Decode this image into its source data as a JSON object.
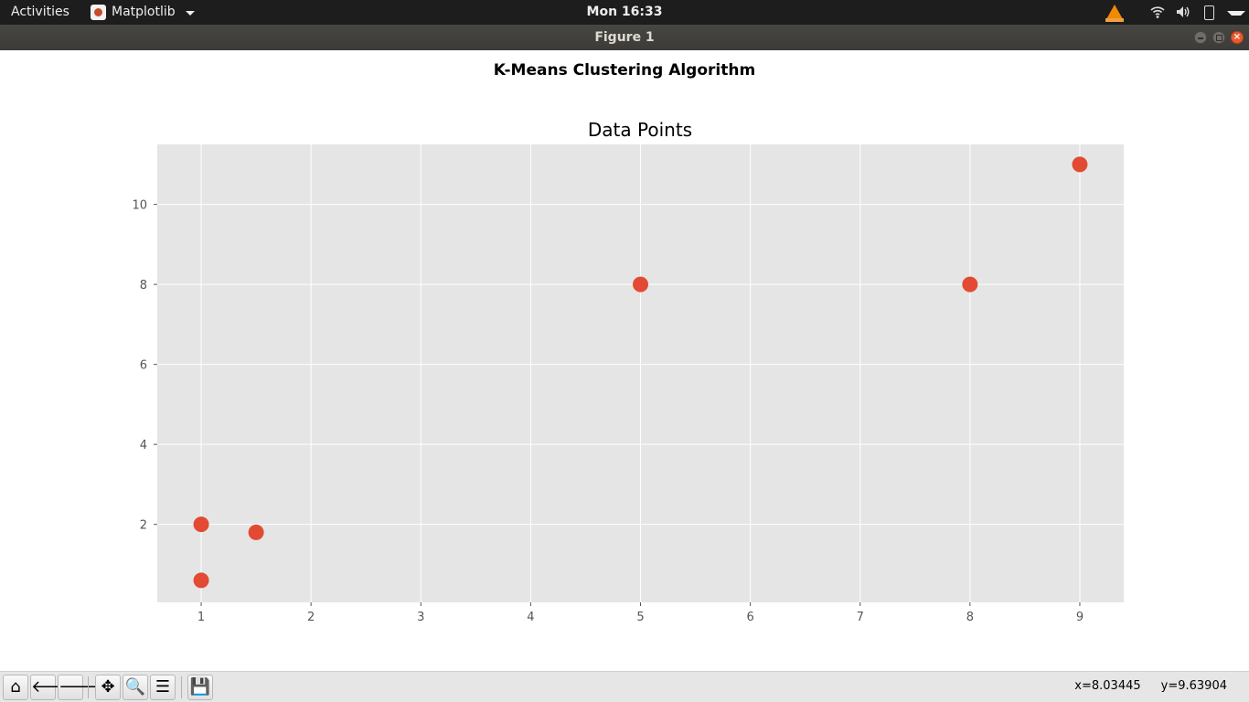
{
  "topbar": {
    "activities_label": "Activities",
    "app_name": "Matplotlib",
    "clock": "Mon 16:33"
  },
  "window": {
    "title": "Figure 1",
    "close_glyph": "×"
  },
  "figure": {
    "suptitle": "K-Means Clustering Algorithm"
  },
  "chart_data": {
    "type": "scatter",
    "title": "Data Points",
    "xlabel": "",
    "ylabel": "",
    "x": [
      1,
      1.5,
      5,
      8,
      1,
      9
    ],
    "y": [
      2,
      1.8,
      8,
      8,
      0.6,
      11
    ],
    "xlim": [
      0.6,
      9.4
    ],
    "ylim": [
      0.05,
      11.5
    ],
    "xticks": [
      1,
      2,
      3,
      4,
      5,
      6,
      7,
      8,
      9
    ],
    "yticks": [
      2,
      4,
      6,
      8,
      10
    ],
    "grid": true,
    "style": "ggplot",
    "colors": {
      "marker": "#e24a33",
      "axes_background": "#e5e5e5",
      "grid": "#ffffff",
      "tick_label": "#555555"
    }
  },
  "toolbar": {
    "buttons": [
      {
        "name": "home",
        "icon": "home-icon",
        "glyph": "⌂"
      },
      {
        "name": "back",
        "icon": "arrow-left-icon",
        "glyph": "🡐"
      },
      {
        "name": "forward",
        "icon": "arrow-right-icon",
        "glyph": "🡒"
      },
      {
        "name": "pan",
        "icon": "move-icon",
        "glyph": "✥"
      },
      {
        "name": "zoom",
        "icon": "magnifier-icon",
        "glyph": "🔍"
      },
      {
        "name": "subplots",
        "icon": "sliders-icon",
        "glyph": "☰"
      },
      {
        "name": "save",
        "icon": "floppy-disk-icon",
        "glyph": "💾"
      }
    ],
    "coord_x": "x=8.03445",
    "coord_y": "y=9.63904"
  }
}
